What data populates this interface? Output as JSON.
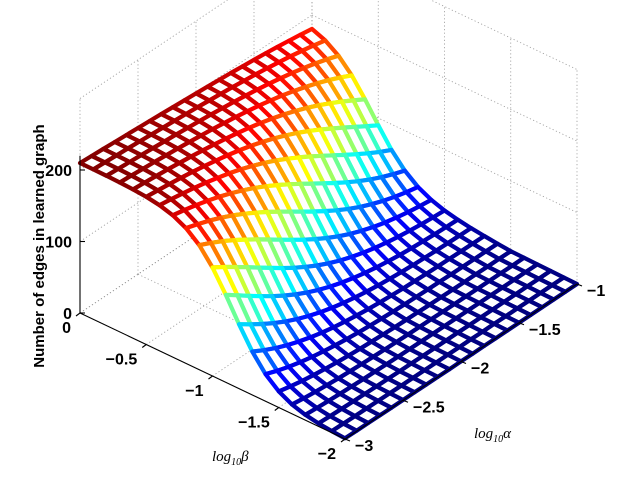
{
  "chart_data": {
    "type": "surface",
    "zlabel": "Number of edges in learned graph",
    "xlabel_text": "log",
    "xlabel_sub": "10",
    "xlabel_var": "β",
    "ylabel_text": "log",
    "ylabel_sub": "10",
    "ylabel_var": "α",
    "x_ticks": [
      {
        "value": 0,
        "label": "0"
      },
      {
        "value": -0.5,
        "label": "−0.5"
      },
      {
        "value": -1,
        "label": "−1"
      },
      {
        "value": -1.5,
        "label": "−1.5"
      },
      {
        "value": -2,
        "label": "−2"
      }
    ],
    "y_ticks": [
      {
        "value": -3,
        "label": "−3"
      },
      {
        "value": -2.5,
        "label": "−2.5"
      },
      {
        "value": -2,
        "label": "−2"
      },
      {
        "value": -1.5,
        "label": "−1.5"
      },
      {
        "value": -1,
        "label": "−1"
      }
    ],
    "z_ticks": [
      {
        "value": 0,
        "label": "0"
      },
      {
        "value": 100,
        "label": "100"
      },
      {
        "value": 200,
        "label": "200"
      }
    ],
    "xlim": [
      -2,
      0
    ],
    "ylim": [
      -3,
      -1
    ],
    "zlim": [
      0,
      300
    ],
    "grid": true,
    "colormap": "jet",
    "grid_points_beta": 21,
    "grid_points_alpha": 21,
    "note_z_model": "z(beta, alpha) sampled on the grid",
    "z_peak": 210,
    "z_floor": 0
  }
}
